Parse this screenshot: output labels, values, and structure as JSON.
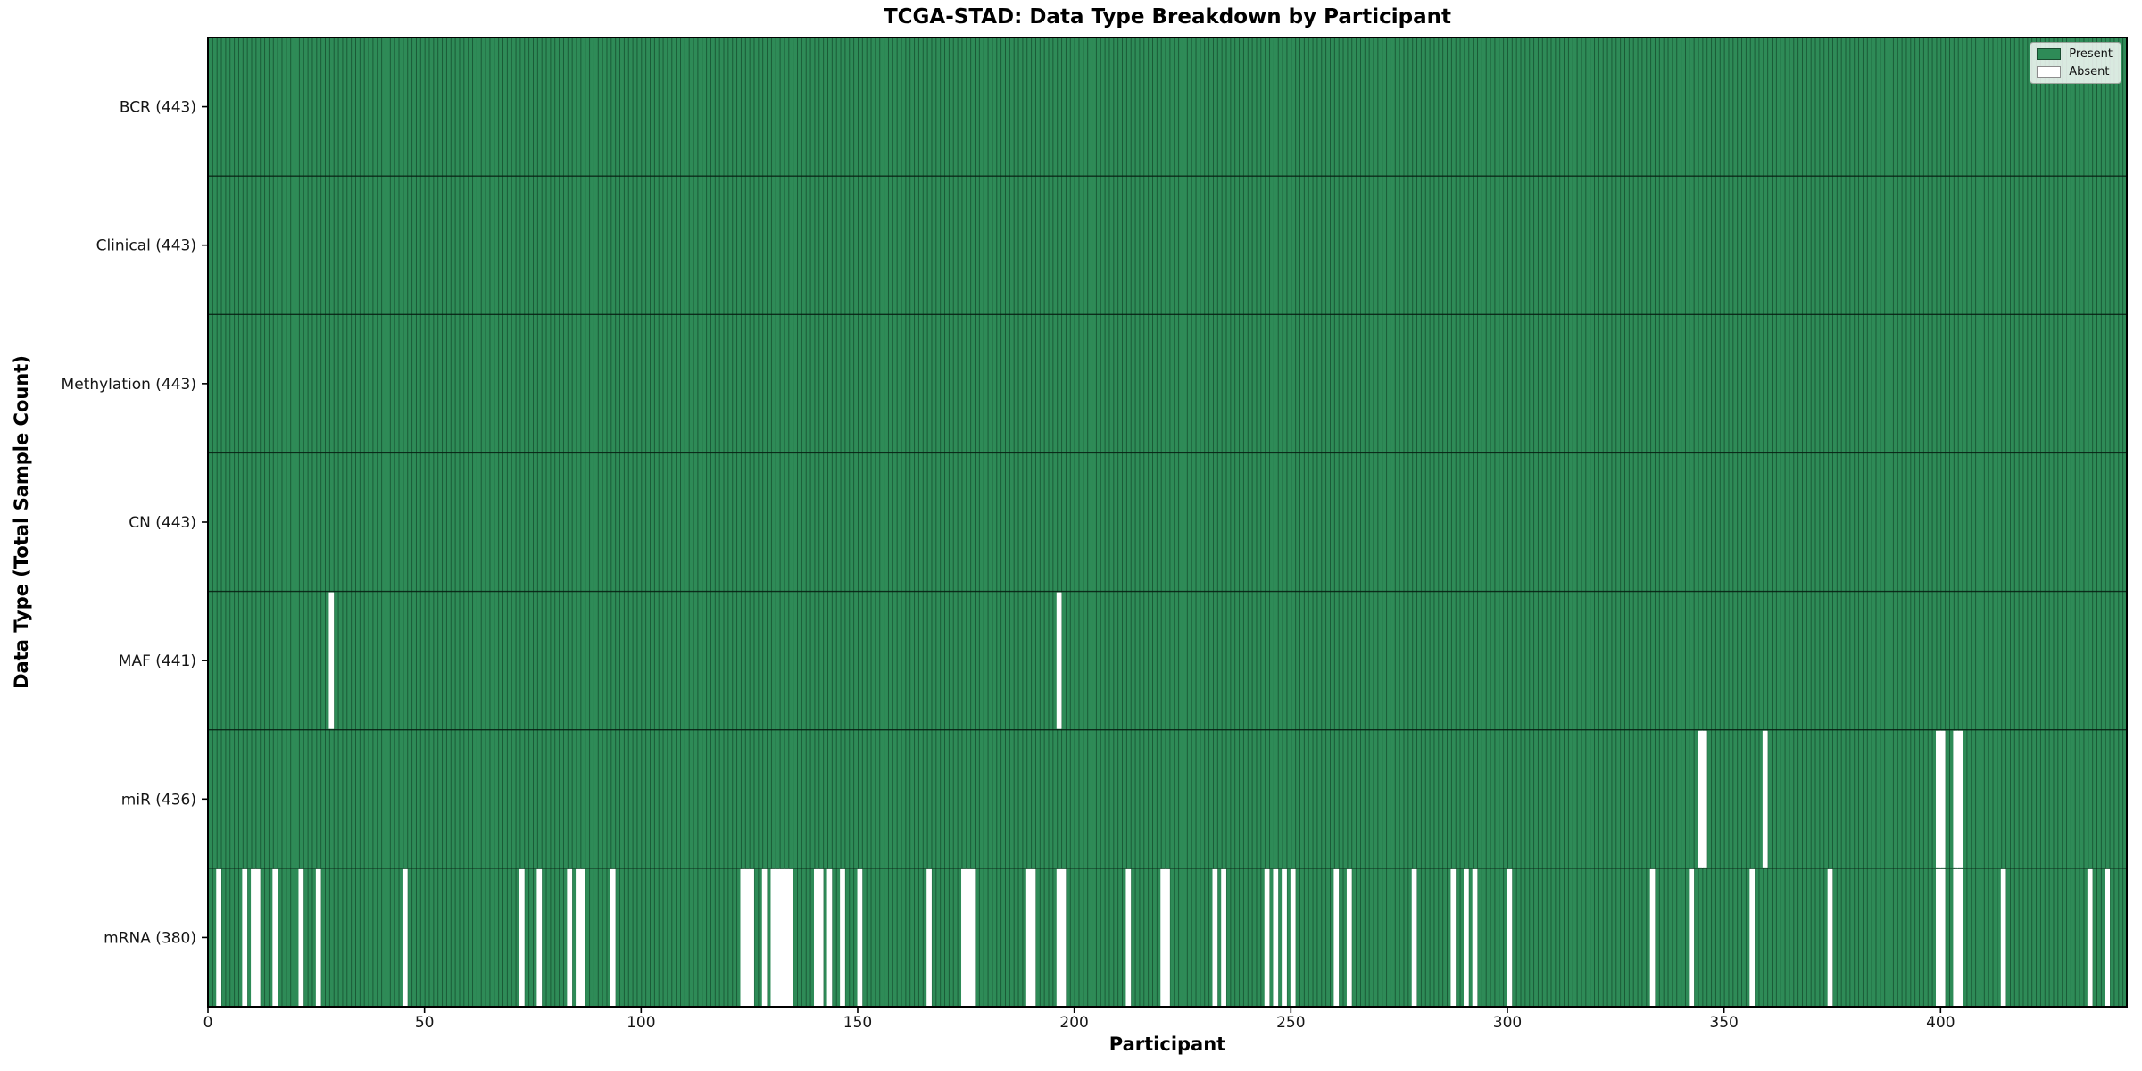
{
  "title": "TCGA-STAD: Data Type Breakdown by Participant",
  "xlabel": "Participant",
  "ylabel": "Data Type (Total Sample Count)",
  "legend": {
    "present_label": "Present",
    "absent_label": "Absent",
    "position": "upper right"
  },
  "colors": {
    "present": "#2E8B57",
    "absent": "#FFFFFF",
    "bar_edge": "#1B5236",
    "spine": "#000000"
  },
  "chart_data": {
    "type": "heatmap",
    "title": "TCGA-STAD: Data Type Breakdown by Participant",
    "xlabel": "Participant",
    "ylabel": "Data Type (Total Sample Count)",
    "legend": [
      "Present",
      "Absent"
    ],
    "legend_position": "upper right",
    "grid": false,
    "n_participants": 443,
    "xlim": [
      0,
      443
    ],
    "x_ticks": [
      0,
      50,
      100,
      150,
      200,
      250,
      300,
      350,
      400
    ],
    "cell_values": {
      "present": 1,
      "absent": 0
    },
    "rows": [
      {
        "name": "BCR",
        "label": "BCR (443)",
        "total": 443,
        "absent": []
      },
      {
        "name": "Clinical",
        "label": "Clinical (443)",
        "total": 443,
        "absent": []
      },
      {
        "name": "Methylation",
        "label": "Methylation (443)",
        "total": 443,
        "absent": []
      },
      {
        "name": "CN",
        "label": "CN (443)",
        "total": 443,
        "absent": []
      },
      {
        "name": "MAF",
        "label": "MAF (441)",
        "total": 441,
        "absent": [
          28,
          196
        ]
      },
      {
        "name": "miR",
        "label": "miR (436)",
        "total": 436,
        "absent": [
          344,
          345,
          359,
          399,
          400,
          403,
          404
        ]
      },
      {
        "name": "mRNA",
        "label": "mRNA (380)",
        "total": 380,
        "absent": [
          2,
          8,
          10,
          11,
          15,
          21,
          25,
          45,
          72,
          76,
          83,
          85,
          86,
          93,
          123,
          124,
          125,
          128,
          130,
          131,
          132,
          133,
          134,
          140,
          141,
          143,
          146,
          150,
          166,
          174,
          175,
          176,
          189,
          190,
          196,
          197,
          212,
          220,
          221,
          232,
          234,
          244,
          246,
          248,
          250,
          260,
          263,
          278,
          287,
          290,
          292,
          300,
          333,
          342,
          356,
          374,
          399,
          400,
          403,
          404,
          414,
          434,
          438
        ]
      }
    ]
  }
}
